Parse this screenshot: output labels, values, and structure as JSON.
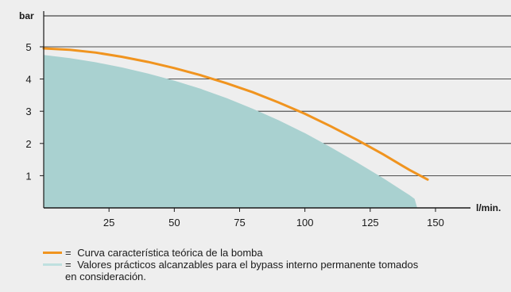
{
  "chart_data": {
    "type": "area",
    "xlabel": "l/min.",
    "ylabel": "bar",
    "xlim": [
      0,
      175
    ],
    "ylim": [
      0,
      6
    ],
    "xticks": [
      25,
      50,
      75,
      100,
      125,
      150
    ],
    "yticks": [
      1,
      2,
      3,
      4,
      5
    ],
    "grid": "horizontal",
    "series": [
      {
        "kind": "line",
        "color": "#f0941f",
        "x": [
          0,
          10,
          20,
          30,
          40,
          50,
          60,
          70,
          80,
          90,
          100,
          110,
          120,
          130,
          140,
          147
        ],
        "y": [
          4.95,
          4.91,
          4.82,
          4.69,
          4.53,
          4.34,
          4.12,
          3.87,
          3.59,
          3.27,
          2.92,
          2.53,
          2.11,
          1.66,
          1.18,
          0.88
        ]
      },
      {
        "kind": "area",
        "color": "#a9d1d0",
        "x": [
          0,
          10,
          20,
          30,
          40,
          50,
          60,
          70,
          80,
          90,
          100,
          110,
          120,
          130,
          140,
          142,
          143
        ],
        "y": [
          4.75,
          4.65,
          4.52,
          4.36,
          4.17,
          3.95,
          3.7,
          3.41,
          3.08,
          2.72,
          2.32,
          1.88,
          1.41,
          0.92,
          0.4,
          0.28,
          0
        ]
      }
    ]
  },
  "legend": {
    "items": [
      {
        "color": "#f0941f",
        "sep": "=",
        "text": "Curva característica teórica de la bomba"
      },
      {
        "color": "#bfe0df",
        "sep": "=",
        "text": "Valores prácticos alcanzables para el bypass interno permanente tomados",
        "continuation": "en consideración."
      }
    ]
  }
}
